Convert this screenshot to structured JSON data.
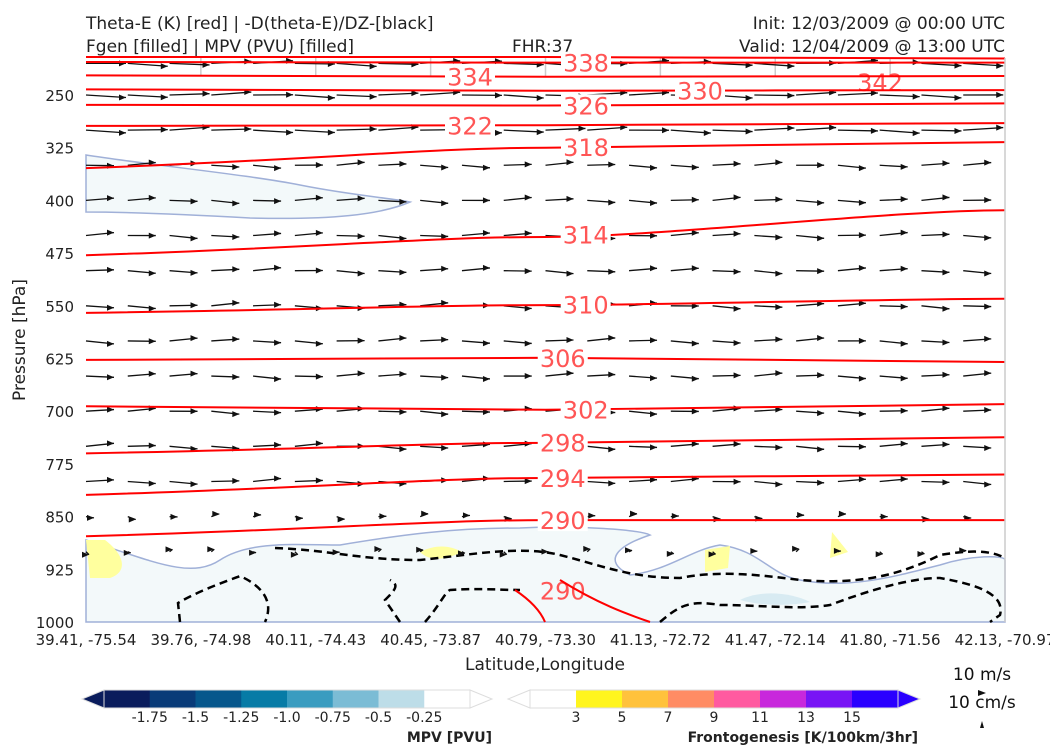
{
  "chart_data": {
    "type": "contour-cross-section",
    "title_left_1": "Theta-E (K) [red] | -D(theta-E)/DZ-[black]",
    "title_left_2": "Fgen [filled] | MPV (PVU) [filled]",
    "title_center": "FHR:37",
    "title_right_1": "Init: 12/03/2009 @ 00:00 UTC",
    "title_right_2": "Valid: 12/04/2009 @ 13:00 UTC",
    "xlabel": "Latitude,Longitude",
    "ylabel": "Pressure [hPa]",
    "x_ticks": [
      "39.41, -75.54",
      "39.76, -74.98",
      "40.11, -74.43",
      "40.45, -73.87",
      "40.79, -73.30",
      "41.13, -72.72",
      "41.47, -72.14",
      "41.80, -71.56",
      "42.13, -70.97"
    ],
    "y_ticks": [
      250,
      325,
      400,
      475,
      550,
      625,
      700,
      775,
      850,
      925,
      1000
    ],
    "ylim": [
      1000,
      197
    ],
    "theta_e_contours": [
      {
        "level": "342",
        "p": [
          196,
          196,
          198
        ],
        "label_at": 6.1
      },
      {
        "level": "338",
        "p": [
          203,
          204,
          204
        ],
        "label_at": 4.35
      },
      {
        "level": "334",
        "p": [
          222,
          224,
          223
        ],
        "label_at": 4.15
      },
      {
        "level": "330",
        "p": [
          242,
          244,
          243
        ],
        "label_at": 4.35
      },
      {
        "level": "326",
        "p": [
          264,
          265,
          262
        ],
        "label_at": 4.35
      },
      {
        "level": "322",
        "p": [
          294,
          293,
          290
        ],
        "label_at": 4.35
      },
      {
        "level": "318",
        "p": [
          354,
          325,
          317
        ],
        "label_at": 4.35
      },
      {
        "level": "314",
        "p": [
          478,
          452,
          414
        ],
        "label_at": 4.35
      },
      {
        "level": "310",
        "p": [
          560,
          549,
          540
        ],
        "label_at": 4.35
      },
      {
        "level": "306",
        "p": [
          627,
          624,
          630
        ],
        "label_at": 4.15
      },
      {
        "level": "302",
        "p": [
          693,
          698,
          690
        ],
        "label_at": 4.35
      },
      {
        "level": "298",
        "p": [
          760,
          745,
          737
        ],
        "label_at": 4.15
      },
      {
        "level": "294",
        "p": [
          819,
          795,
          790
        ],
        "label_at": 4.15
      },
      {
        "level": "290",
        "p": [
          878,
          855,
          855
        ],
        "label_at": 4.15
      },
      {
        "level": "290",
        "p": [
          955,
          955,
          955
        ],
        "label_at": 4.15,
        "label_only": true
      }
    ],
    "wind_rows": [
      205,
      250,
      300,
      350,
      400,
      450,
      500,
      550,
      600,
      650,
      700,
      750,
      800,
      850,
      900
    ],
    "wind_cols": 22,
    "mpv_colorbar": {
      "label": "MPV [PVU]",
      "colors": [
        "#0a1c5c",
        "#093b78",
        "#06578c",
        "#077ba6",
        "#3a9cc0",
        "#7bbcd5",
        "#bddde8",
        "#ffffff"
      ],
      "ticks": [
        "-1.75",
        "-1.5",
        "-1.25",
        "-1.0",
        "-0.75",
        "-0.5",
        "-0.25"
      ]
    },
    "fgen_colorbar": {
      "label": "Frontogenesis [K/100km/3hr]",
      "colors": [
        "#ffffff",
        "#fff51e",
        "#ffc23c",
        "#ff8c64",
        "#ff5aa0",
        "#c828dc",
        "#7814f5",
        "#2a00ff"
      ],
      "ticks": [
        "3",
        "5",
        "7",
        "9",
        "11",
        "13",
        "15"
      ]
    },
    "wind_legend": [
      "10 m/s",
      "10 cm/s"
    ]
  }
}
